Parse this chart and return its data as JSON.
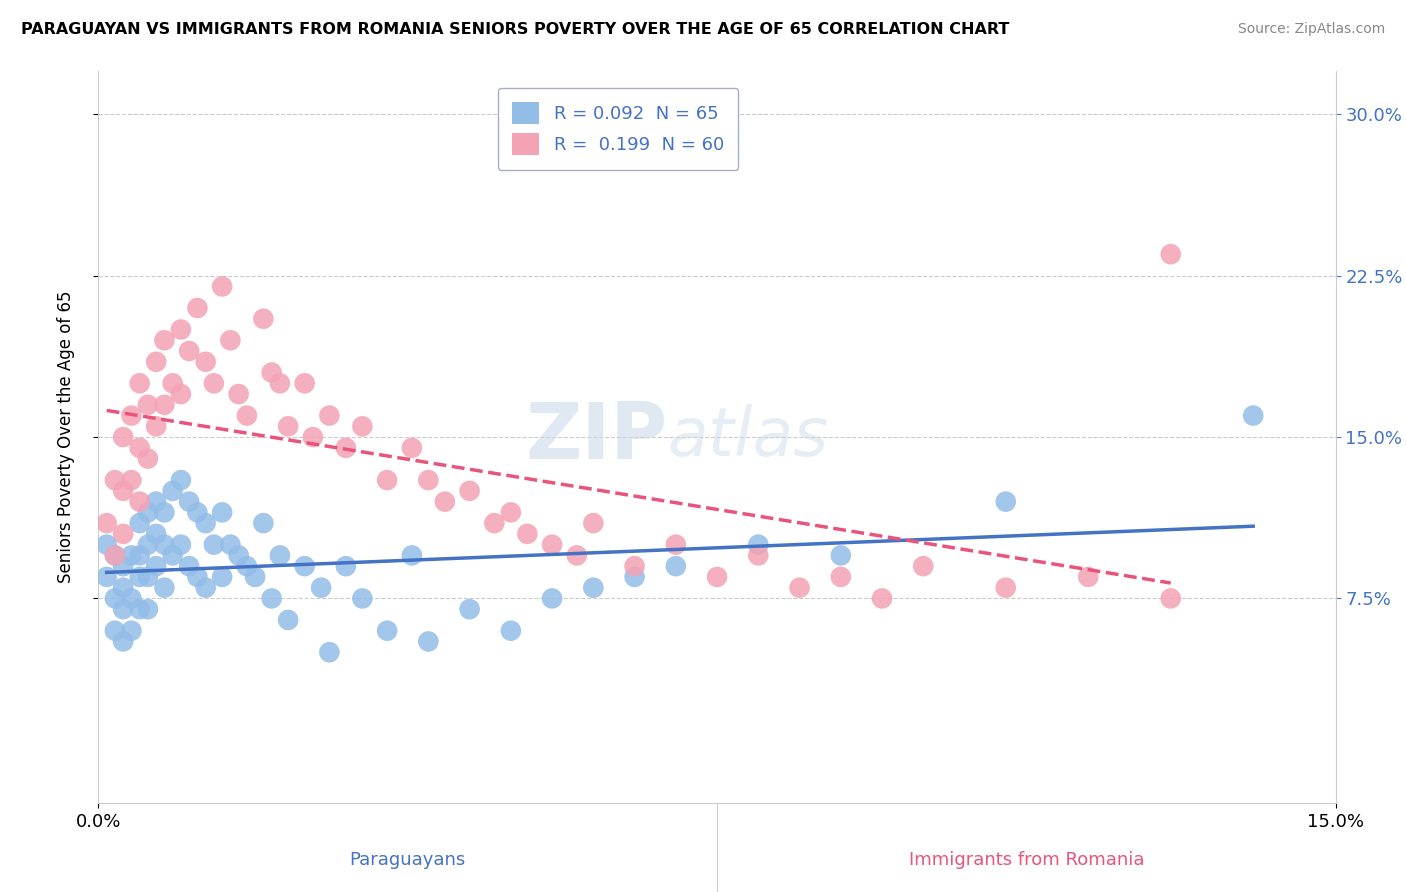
{
  "title": "PARAGUAYAN VS IMMIGRANTS FROM ROMANIA SENIORS POVERTY OVER THE AGE OF 65 CORRELATION CHART",
  "source": "Source: ZipAtlas.com",
  "ylabel": "Seniors Poverty Over the Age of 65",
  "xlabel_paraguayans": "Paraguayans",
  "xlabel_romanians": "Immigrants from Romania",
  "x_min": 0.0,
  "x_max": 0.15,
  "y_min": -0.02,
  "y_max": 0.32,
  "yticks": [
    0.075,
    0.15,
    0.225,
    0.3
  ],
  "ytick_labels": [
    "7.5%",
    "15.0%",
    "22.5%",
    "30.0%"
  ],
  "xticks": [
    0.0,
    0.15
  ],
  "xtick_labels": [
    "0.0%",
    "15.0%"
  ],
  "R_paraguayan": 0.092,
  "N_paraguayan": 65,
  "R_romanian": 0.199,
  "N_romanian": 60,
  "color_paraguayan": "#92bde7",
  "color_romanian": "#f4a3b5",
  "trendline_paraguayan": "#4472c4",
  "trendline_romanian": "#e8547a",
  "legend_text_color": "#4472c4",
  "watermark_zip": "ZIP",
  "watermark_atlas": "atlas",
  "paraguayan_x": [
    0.001,
    0.001,
    0.002,
    0.002,
    0.002,
    0.003,
    0.003,
    0.003,
    0.003,
    0.004,
    0.004,
    0.004,
    0.005,
    0.005,
    0.005,
    0.005,
    0.006,
    0.006,
    0.006,
    0.006,
    0.007,
    0.007,
    0.007,
    0.008,
    0.008,
    0.008,
    0.009,
    0.009,
    0.01,
    0.01,
    0.011,
    0.011,
    0.012,
    0.012,
    0.013,
    0.013,
    0.014,
    0.015,
    0.015,
    0.016,
    0.017,
    0.018,
    0.019,
    0.02,
    0.021,
    0.022,
    0.023,
    0.025,
    0.027,
    0.028,
    0.03,
    0.032,
    0.035,
    0.038,
    0.04,
    0.045,
    0.05,
    0.055,
    0.06,
    0.065,
    0.07,
    0.08,
    0.09,
    0.11,
    0.14
  ],
  "paraguayan_y": [
    0.1,
    0.085,
    0.095,
    0.075,
    0.06,
    0.09,
    0.08,
    0.07,
    0.055,
    0.095,
    0.075,
    0.06,
    0.11,
    0.095,
    0.085,
    0.07,
    0.115,
    0.1,
    0.085,
    0.07,
    0.12,
    0.105,
    0.09,
    0.115,
    0.1,
    0.08,
    0.125,
    0.095,
    0.13,
    0.1,
    0.12,
    0.09,
    0.115,
    0.085,
    0.11,
    0.08,
    0.1,
    0.115,
    0.085,
    0.1,
    0.095,
    0.09,
    0.085,
    0.11,
    0.075,
    0.095,
    0.065,
    0.09,
    0.08,
    0.05,
    0.09,
    0.075,
    0.06,
    0.095,
    0.055,
    0.07,
    0.06,
    0.075,
    0.08,
    0.085,
    0.09,
    0.1,
    0.095,
    0.12,
    0.16
  ],
  "romanian_x": [
    0.001,
    0.002,
    0.002,
    0.003,
    0.003,
    0.003,
    0.004,
    0.004,
    0.005,
    0.005,
    0.005,
    0.006,
    0.006,
    0.007,
    0.007,
    0.008,
    0.008,
    0.009,
    0.01,
    0.01,
    0.011,
    0.012,
    0.013,
    0.014,
    0.015,
    0.016,
    0.017,
    0.018,
    0.02,
    0.021,
    0.022,
    0.023,
    0.025,
    0.026,
    0.028,
    0.03,
    0.032,
    0.035,
    0.038,
    0.04,
    0.042,
    0.045,
    0.048,
    0.05,
    0.052,
    0.055,
    0.058,
    0.06,
    0.065,
    0.07,
    0.075,
    0.08,
    0.085,
    0.09,
    0.095,
    0.1,
    0.11,
    0.12,
    0.13,
    0.13
  ],
  "romanian_y": [
    0.11,
    0.13,
    0.095,
    0.15,
    0.125,
    0.105,
    0.16,
    0.13,
    0.175,
    0.145,
    0.12,
    0.165,
    0.14,
    0.185,
    0.155,
    0.195,
    0.165,
    0.175,
    0.2,
    0.17,
    0.19,
    0.21,
    0.185,
    0.175,
    0.22,
    0.195,
    0.17,
    0.16,
    0.205,
    0.18,
    0.175,
    0.155,
    0.175,
    0.15,
    0.16,
    0.145,
    0.155,
    0.13,
    0.145,
    0.13,
    0.12,
    0.125,
    0.11,
    0.115,
    0.105,
    0.1,
    0.095,
    0.11,
    0.09,
    0.1,
    0.085,
    0.095,
    0.08,
    0.085,
    0.075,
    0.09,
    0.08,
    0.085,
    0.075,
    0.235
  ]
}
